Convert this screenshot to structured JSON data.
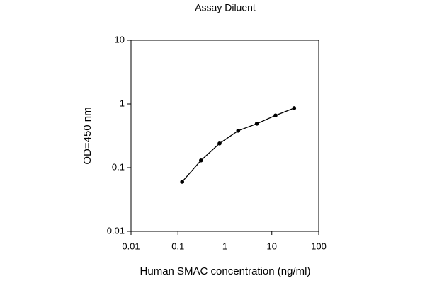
{
  "chart_data": {
    "type": "line",
    "title": "Assay Diluent",
    "x_label": "Human SMAC concentration (ng/ml)",
    "y_label": "OD=450 nm",
    "x": [
      0.123,
      0.31,
      0.77,
      1.92,
      4.8,
      12,
      30
    ],
    "values": [
      0.06,
      0.13,
      0.24,
      0.38,
      0.49,
      0.66,
      0.86
    ],
    "color": "#000000",
    "x_log": true,
    "y_log": true,
    "xlim": [
      0.01,
      100
    ],
    "ylim": [
      0.01,
      10
    ],
    "xticks": [
      0.01,
      0.1,
      1,
      10,
      100
    ],
    "yticks": [
      0.01,
      0.1,
      1,
      10
    ]
  }
}
